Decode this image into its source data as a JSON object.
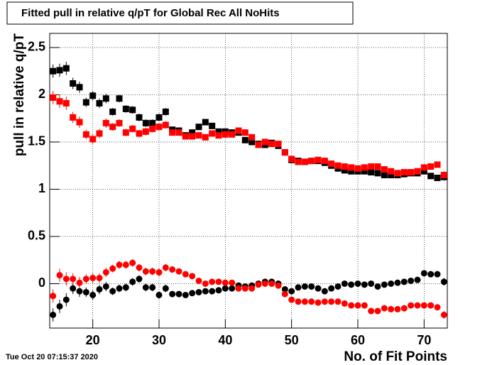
{
  "chart_data": {
    "type": "scatter",
    "title": "Fitted pull in relative q/pT for Global Rec All NoHits",
    "xlabel": "No. of Fit Points",
    "ylabel": "pull in relative q/pT",
    "timestamp": "Tue Oct 20 07:15:37 2020",
    "xlim": [
      13.5,
      73.5
    ],
    "xticks": [
      20,
      30,
      40,
      50,
      60,
      70
    ],
    "ylim": [
      -0.47,
      2.65
    ],
    "yticks": [
      0,
      0.5,
      1,
      1.5,
      2,
      2.5
    ],
    "grid": true,
    "x": [
      14,
      15,
      16,
      17,
      18,
      19,
      20,
      21,
      22,
      23,
      24,
      25,
      26,
      27,
      28,
      29,
      30,
      31,
      32,
      33,
      34,
      35,
      36,
      37,
      38,
      39,
      40,
      41,
      42,
      43,
      44,
      45,
      46,
      47,
      48,
      49,
      50,
      51,
      52,
      53,
      54,
      55,
      56,
      57,
      58,
      59,
      60,
      61,
      62,
      63,
      64,
      65,
      66,
      67,
      68,
      69,
      70,
      71,
      72,
      73
    ],
    "series": [
      {
        "color": "#000000",
        "marker": "square",
        "values": [
          2.25,
          2.26,
          2.28,
          2.12,
          2.08,
          1.92,
          1.99,
          1.91,
          1.96,
          1.82,
          1.96,
          1.85,
          1.84,
          1.76,
          1.7,
          1.7,
          1.76,
          1.82,
          1.63,
          1.62,
          1.57,
          1.6,
          1.66,
          1.71,
          1.67,
          1.61,
          1.61,
          1.6,
          1.6,
          1.52,
          1.5,
          1.48,
          1.47,
          1.49,
          1.46,
          1.39,
          1.31,
          1.3,
          1.29,
          1.3,
          1.3,
          1.28,
          1.25,
          1.22,
          1.2,
          1.19,
          1.19,
          1.19,
          1.18,
          1.17,
          1.15,
          1.15,
          1.15,
          1.16,
          1.17,
          1.17,
          1.19,
          1.14,
          1.12,
          1.13
        ],
        "errors": [
          0.07,
          0.07,
          0.07,
          0.06,
          0.06,
          0.05,
          0.05,
          0.05,
          0.05,
          0.04,
          0.04,
          0.04,
          0.04,
          0.04,
          0.04,
          0.04,
          0.04,
          0.04,
          0.03,
          0.03,
          0.03,
          0.03,
          0.03,
          0.03,
          0.03,
          0.03,
          0.03,
          0.03,
          0.03,
          0.03,
          0.03,
          0.03,
          0.02,
          0.02,
          0.02,
          0.02,
          0.02,
          0.02,
          0.02,
          0.02,
          0.02,
          0.02,
          0.02,
          0.02,
          0.02,
          0.02,
          0.02,
          0.02,
          0.02,
          0.02,
          0.02,
          0.02,
          0.02,
          0.02,
          0.02,
          0.02,
          0.03,
          0.03,
          0.03,
          0.04
        ]
      },
      {
        "color": "#ff0000",
        "marker": "square",
        "values": [
          1.97,
          1.93,
          1.91,
          1.76,
          1.71,
          1.58,
          1.53,
          1.59,
          1.7,
          1.66,
          1.7,
          1.6,
          1.64,
          1.59,
          1.61,
          1.64,
          1.66,
          1.68,
          1.6,
          1.6,
          1.56,
          1.56,
          1.57,
          1.55,
          1.59,
          1.57,
          1.58,
          1.58,
          1.62,
          1.6,
          1.55,
          1.47,
          1.5,
          1.48,
          1.48,
          1.39,
          1.32,
          1.29,
          1.29,
          1.3,
          1.31,
          1.3,
          1.27,
          1.25,
          1.24,
          1.23,
          1.22,
          1.23,
          1.24,
          1.24,
          1.21,
          1.19,
          1.17,
          1.18,
          1.18,
          1.19,
          1.23,
          1.24,
          1.26,
          1.15
        ],
        "errors": [
          0.07,
          0.07,
          0.07,
          0.06,
          0.06,
          0.05,
          0.05,
          0.05,
          0.05,
          0.04,
          0.04,
          0.04,
          0.04,
          0.04,
          0.04,
          0.04,
          0.04,
          0.04,
          0.03,
          0.03,
          0.03,
          0.03,
          0.03,
          0.03,
          0.03,
          0.03,
          0.03,
          0.03,
          0.03,
          0.03,
          0.03,
          0.03,
          0.02,
          0.02,
          0.02,
          0.02,
          0.02,
          0.02,
          0.02,
          0.02,
          0.02,
          0.02,
          0.02,
          0.02,
          0.02,
          0.02,
          0.02,
          0.02,
          0.02,
          0.02,
          0.02,
          0.02,
          0.02,
          0.02,
          0.02,
          0.02,
          0.03,
          0.03,
          0.03,
          0.04
        ]
      },
      {
        "color": "#000000",
        "marker": "circle",
        "values": [
          -0.33,
          -0.24,
          -0.17,
          -0.05,
          -0.08,
          -0.09,
          -0.12,
          -0.06,
          -0.03,
          -0.08,
          -0.05,
          -0.04,
          0.02,
          0.05,
          -0.04,
          -0.04,
          -0.12,
          -0.05,
          -0.11,
          -0.11,
          -0.12,
          -0.1,
          -0.09,
          -0.08,
          -0.08,
          -0.07,
          -0.05,
          -0.05,
          -0.02,
          -0.03,
          -0.02,
          0.0,
          0.02,
          0.02,
          0.0,
          -0.06,
          -0.08,
          -0.04,
          -0.03,
          -0.03,
          -0.05,
          -0.08,
          -0.05,
          -0.03,
          0.0,
          -0.01,
          0.0,
          -0.01,
          0.0,
          -0.03,
          -0.01,
          0.0,
          0.01,
          0.02,
          0.03,
          0.04,
          0.11,
          0.1,
          0.1,
          0.02
        ],
        "errors": [
          0.07,
          0.07,
          0.07,
          0.06,
          0.06,
          0.05,
          0.05,
          0.05,
          0.05,
          0.04,
          0.04,
          0.04,
          0.04,
          0.04,
          0.04,
          0.04,
          0.04,
          0.04,
          0.03,
          0.03,
          0.03,
          0.03,
          0.03,
          0.03,
          0.03,
          0.03,
          0.03,
          0.03,
          0.03,
          0.03,
          0.03,
          0.03,
          0.02,
          0.02,
          0.02,
          0.02,
          0.02,
          0.02,
          0.02,
          0.02,
          0.02,
          0.02,
          0.02,
          0.02,
          0.02,
          0.02,
          0.02,
          0.02,
          0.02,
          0.02,
          0.02,
          0.02,
          0.02,
          0.02,
          0.02,
          0.02,
          0.03,
          0.03,
          0.03,
          0.04
        ]
      },
      {
        "color": "#ff0000",
        "marker": "circle",
        "values": [
          -0.13,
          0.09,
          0.05,
          0.05,
          0.01,
          0.05,
          0.06,
          0.06,
          0.12,
          0.16,
          0.2,
          0.2,
          0.22,
          0.17,
          0.13,
          0.13,
          0.12,
          0.17,
          0.15,
          0.13,
          0.1,
          0.08,
          0.03,
          0.0,
          0.02,
          0.02,
          0.01,
          0.01,
          -0.05,
          -0.05,
          -0.05,
          -0.01,
          0.0,
          0.0,
          -0.02,
          -0.11,
          -0.17,
          -0.19,
          -0.19,
          -0.19,
          -0.2,
          -0.19,
          -0.19,
          -0.19,
          -0.21,
          -0.23,
          -0.23,
          -0.23,
          -0.29,
          -0.29,
          -0.26,
          -0.27,
          -0.27,
          -0.26,
          -0.23,
          -0.23,
          -0.23,
          -0.23,
          -0.25,
          -0.33
        ],
        "errors": [
          0.07,
          0.07,
          0.07,
          0.06,
          0.06,
          0.05,
          0.05,
          0.05,
          0.05,
          0.04,
          0.04,
          0.04,
          0.04,
          0.04,
          0.04,
          0.04,
          0.04,
          0.04,
          0.03,
          0.03,
          0.03,
          0.03,
          0.03,
          0.03,
          0.03,
          0.03,
          0.03,
          0.03,
          0.03,
          0.03,
          0.03,
          0.03,
          0.02,
          0.02,
          0.02,
          0.02,
          0.02,
          0.02,
          0.02,
          0.02,
          0.02,
          0.02,
          0.02,
          0.02,
          0.02,
          0.02,
          0.02,
          0.02,
          0.02,
          0.02,
          0.02,
          0.02,
          0.02,
          0.02,
          0.02,
          0.02,
          0.03,
          0.03,
          0.03,
          0.04
        ]
      }
    ]
  }
}
